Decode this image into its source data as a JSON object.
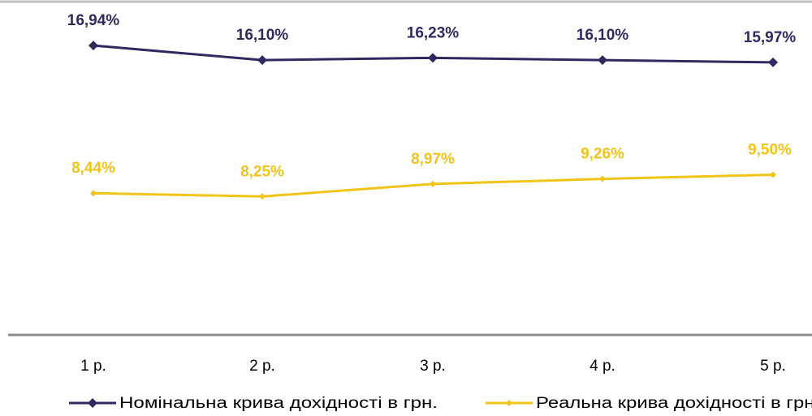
{
  "chart_data": {
    "type": "line",
    "categories": [
      "1 р.",
      "2 р.",
      "3 р.",
      "4 р.",
      "5 р."
    ],
    "ylim": [
      0,
      19
    ],
    "series": [
      {
        "name": "Номінальна крива дохідності в грн.",
        "color": "#2e2a5f",
        "values": [
          16.94,
          16.1,
          16.23,
          16.1,
          15.97
        ],
        "value_labels": [
          "16,94%",
          "16,10%",
          "16,23%",
          "16,10%",
          "15,97%"
        ]
      },
      {
        "name": "Реальна крива дохідності в грн.",
        "color": "#f0c419",
        "values": [
          8.44,
          8.25,
          8.97,
          9.26,
          9.5
        ],
        "value_labels": [
          "8,44%",
          "8,25%",
          "8,97%",
          "9,26%",
          "9,50%"
        ]
      }
    ]
  }
}
